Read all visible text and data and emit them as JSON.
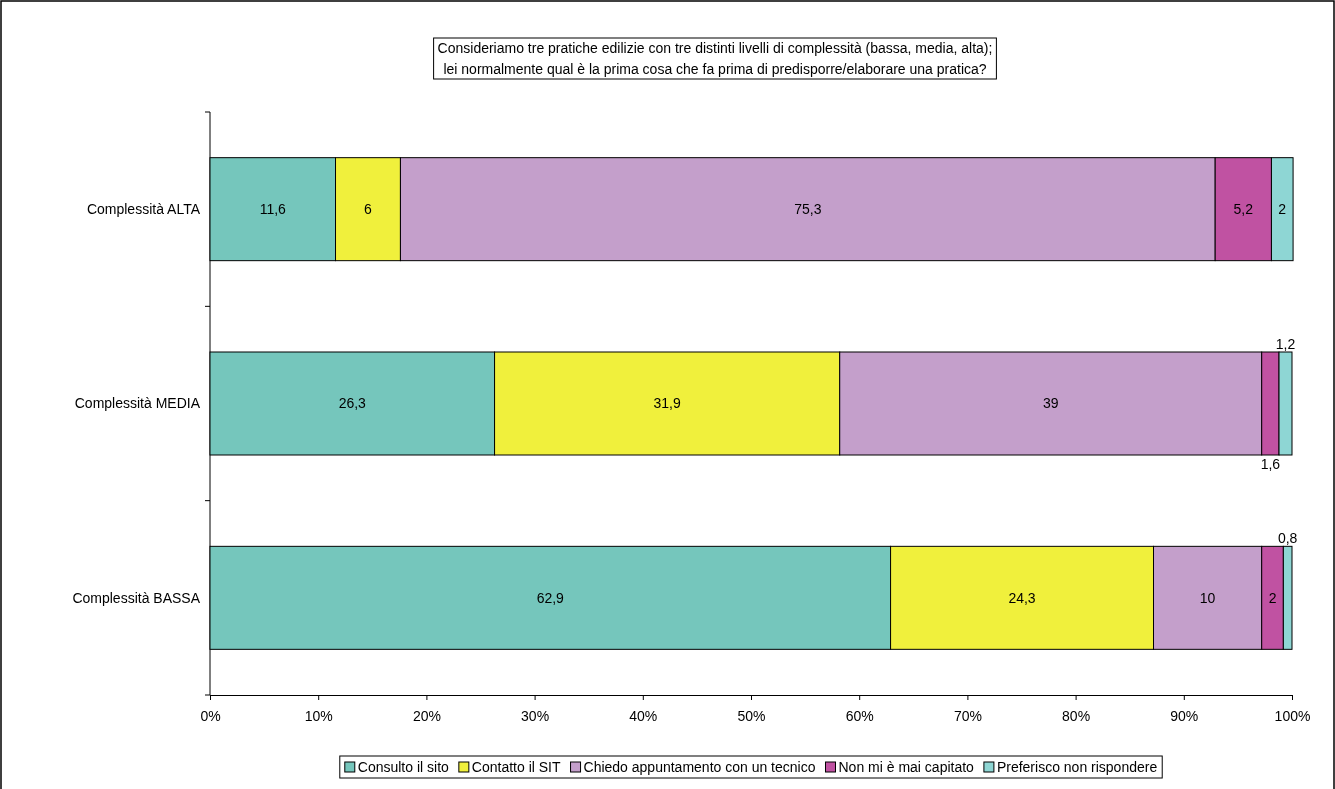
{
  "chart_data": {
    "type": "bar",
    "orientation": "horizontal",
    "stacked": true,
    "title": "Consideriamo tre pratiche edilizie con tre distinti livelli di complessità (bassa, media, alta);\nlei normalmente qual è la prima cosa che fa prima di predisporre/elaborare una pratica?",
    "categories": [
      "Complessità ALTA",
      "Complessità MEDIA",
      "Complessità BASSA"
    ],
    "series": [
      {
        "name": "Consulto il sito",
        "color": "#75c6bc",
        "values": [
          11.6,
          26.3,
          62.9
        ],
        "value_labels": [
          "11,6",
          "26,3",
          "62,9"
        ]
      },
      {
        "name": "Contatto il SIT",
        "color": "#f0f03c",
        "values": [
          6,
          31.9,
          24.3
        ],
        "value_labels": [
          "6",
          "31,9",
          "24,3"
        ]
      },
      {
        "name": "Chiedo appuntamento con un tecnico",
        "color": "#c49fcb",
        "values": [
          75.3,
          39,
          10
        ],
        "value_labels": [
          "75,3",
          "39",
          "10"
        ]
      },
      {
        "name": "Non mi è mai capitato",
        "color": "#c052a2",
        "values": [
          5.2,
          1.6,
          2
        ],
        "value_labels": [
          "5,2",
          "1,6",
          "2"
        ]
      },
      {
        "name": "Preferisco non rispondere",
        "color": "#8ed6d4",
        "values": [
          2,
          1.2,
          0.8
        ],
        "value_labels": [
          "2",
          "1,2",
          "0,8"
        ]
      }
    ],
    "xlim": [
      0,
      100
    ],
    "xticks": [
      {
        "value": 0,
        "label": "0%"
      },
      {
        "value": 10,
        "label": "10%"
      },
      {
        "value": 20,
        "label": "20%"
      },
      {
        "value": 30,
        "label": "30%"
      },
      {
        "value": 40,
        "label": "40%"
      },
      {
        "value": 50,
        "label": "50%"
      },
      {
        "value": 60,
        "label": "60%"
      },
      {
        "value": 70,
        "label": "70%"
      },
      {
        "value": 80,
        "label": "80%"
      },
      {
        "value": 90,
        "label": "90%"
      },
      {
        "value": 100,
        "label": "100%"
      }
    ],
    "grid": false,
    "legend": "bottom"
  }
}
